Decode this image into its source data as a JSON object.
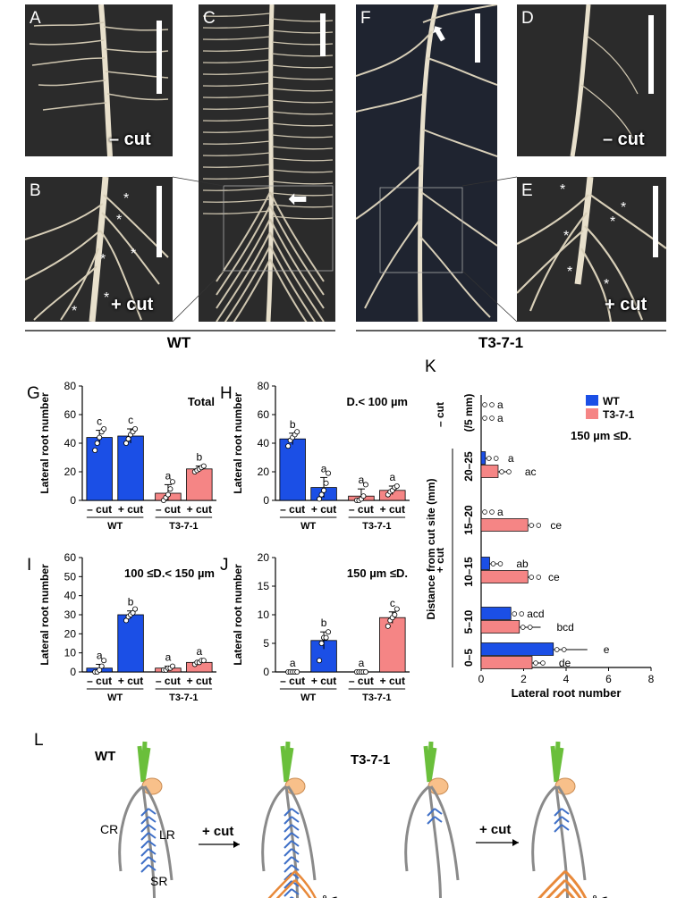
{
  "panels": {
    "A": "A",
    "B": "B",
    "C": "C",
    "D": "D",
    "E": "E",
    "F": "F",
    "G": "G",
    "H": "H",
    "I": "I",
    "J": "J",
    "K": "K",
    "L": "L"
  },
  "photo_labels": {
    "minus_cut": "– cut",
    "plus_cut": "+ cut",
    "asterisk": "*"
  },
  "groups": {
    "wt": "WT",
    "t3": "T3-7-1"
  },
  "colors": {
    "wt": "#1b4fe6",
    "t3": "#f58585",
    "shoot": "#6abf3b",
    "seed": "#f8c08a",
    "root": "#8a8a8a",
    "lateral": "#3e6fc7",
    "cut_lateral": "#e8893a"
  },
  "chart_data": [
    {
      "panel": "G",
      "type": "bar",
      "title": "Total",
      "ylabel": "Lateral root number",
      "ylim": [
        0,
        80
      ],
      "yticks": [
        0,
        20,
        40,
        60,
        80
      ],
      "categories": [
        "– cut",
        "+ cut",
        "– cut",
        "+ cut"
      ],
      "groups": [
        "WT",
        "T3-7-1"
      ],
      "values": [
        44,
        45,
        5,
        22
      ],
      "errors": [
        5,
        5,
        6,
        2
      ],
      "letters": [
        "c",
        "c",
        "a",
        "b"
      ],
      "points": [
        [
          35,
          40,
          44,
          48,
          50
        ],
        [
          40,
          43,
          46,
          48,
          50
        ],
        [
          0,
          2,
          4,
          8,
          13
        ],
        [
          20,
          21,
          22,
          23,
          24
        ]
      ]
    },
    {
      "panel": "H",
      "type": "bar",
      "title": "D.< 100 µm",
      "ylabel": "Lateral root number",
      "ylim": [
        0,
        80
      ],
      "yticks": [
        0,
        20,
        40,
        60,
        80
      ],
      "categories": [
        "– cut",
        "+ cut",
        "– cut",
        "+ cut"
      ],
      "groups": [
        "WT",
        "T3-7-1"
      ],
      "values": [
        43,
        9,
        3,
        7
      ],
      "errors": [
        4,
        7,
        5,
        3
      ],
      "letters": [
        "b",
        "a",
        "a",
        "a"
      ],
      "points": [
        [
          38,
          42,
          44,
          46,
          48
        ],
        [
          1,
          4,
          7,
          12,
          19
        ],
        [
          0,
          0,
          1,
          3,
          11
        ],
        [
          4,
          6,
          7,
          9,
          10
        ]
      ]
    },
    {
      "panel": "I",
      "type": "bar",
      "title": "100 ≤D.< 150 µm",
      "ylabel": "Lateral root number",
      "ylim": [
        0,
        60
      ],
      "yticks": [
        0,
        10,
        20,
        30,
        40,
        50,
        60
      ],
      "categories": [
        "– cut",
        "+ cut",
        "– cut",
        "+ cut"
      ],
      "groups": [
        "WT",
        "T3-7-1"
      ],
      "values": [
        2,
        30,
        2,
        5
      ],
      "errors": [
        2,
        2,
        1,
        1
      ],
      "letters": [
        "a",
        "b",
        "a",
        "a"
      ],
      "points": [
        [
          0,
          0,
          1,
          3,
          6
        ],
        [
          27,
          29,
          30,
          31,
          33
        ],
        [
          1,
          1,
          2,
          2,
          3
        ],
        [
          4,
          5,
          5,
          6,
          6
        ]
      ]
    },
    {
      "panel": "J",
      "type": "bar",
      "title": "150 µm ≤D.",
      "ylabel": "Lateral root number",
      "ylim": [
        0,
        20
      ],
      "yticks": [
        0,
        5,
        10,
        15,
        20
      ],
      "categories": [
        "– cut",
        "+ cut",
        "– cut",
        "+ cut"
      ],
      "groups": [
        "WT",
        "T3-7-1"
      ],
      "values": [
        0,
        5.5,
        0,
        9.5
      ],
      "errors": [
        0,
        1.5,
        0,
        1
      ],
      "letters": [
        "a",
        "b",
        "a",
        "c"
      ],
      "points": [
        [
          0,
          0,
          0,
          0,
          0
        ],
        [
          2,
          5,
          6,
          6,
          7
        ],
        [
          0,
          0,
          0,
          0,
          0
        ],
        [
          8,
          9,
          9.5,
          10,
          11
        ]
      ]
    },
    {
      "panel": "K",
      "type": "bar",
      "orientation": "horizontal",
      "xlabel": "Lateral root number",
      "ylabel": "Distance from cut site (mm)",
      "xlim": [
        0,
        8
      ],
      "xticks": [
        0,
        2,
        4,
        6,
        8
      ],
      "legend": [
        "WT",
        "T3-7-1"
      ],
      "annotation": "150 µm ≤D.",
      "side_labels": {
        "minus": "– cut",
        "plus": "+ cut",
        "unit": "(/5 mm)"
      },
      "categories": [
        "(/5 mm)",
        "20–25",
        "15–20",
        "10–15",
        "5–10",
        "0–5"
      ],
      "series": [
        {
          "name": "WT",
          "values": [
            0,
            0.2,
            0,
            0.4,
            1.4,
            3.4
          ],
          "errors": [
            0,
            0.3,
            0,
            0.5,
            0,
            1.6
          ],
          "letters": [
            "a",
            "a",
            "a",
            "ab",
            "acd",
            "e"
          ]
        },
        {
          "name": "T3-7-1",
          "values": [
            0,
            0.8,
            2.2,
            2.2,
            1.8,
            2.4
          ],
          "errors": [
            0,
            0.5,
            0.3,
            0.2,
            1,
            0.5
          ],
          "letters": [
            "a",
            "ac",
            "ce",
            "ce",
            "bcd",
            "de"
          ]
        }
      ]
    }
  ],
  "schematic": {
    "wt": "WT",
    "t3": "T3-7-1",
    "cut": "+ cut",
    "cr": "CR",
    "lr": "LR",
    "sr": "SR"
  }
}
